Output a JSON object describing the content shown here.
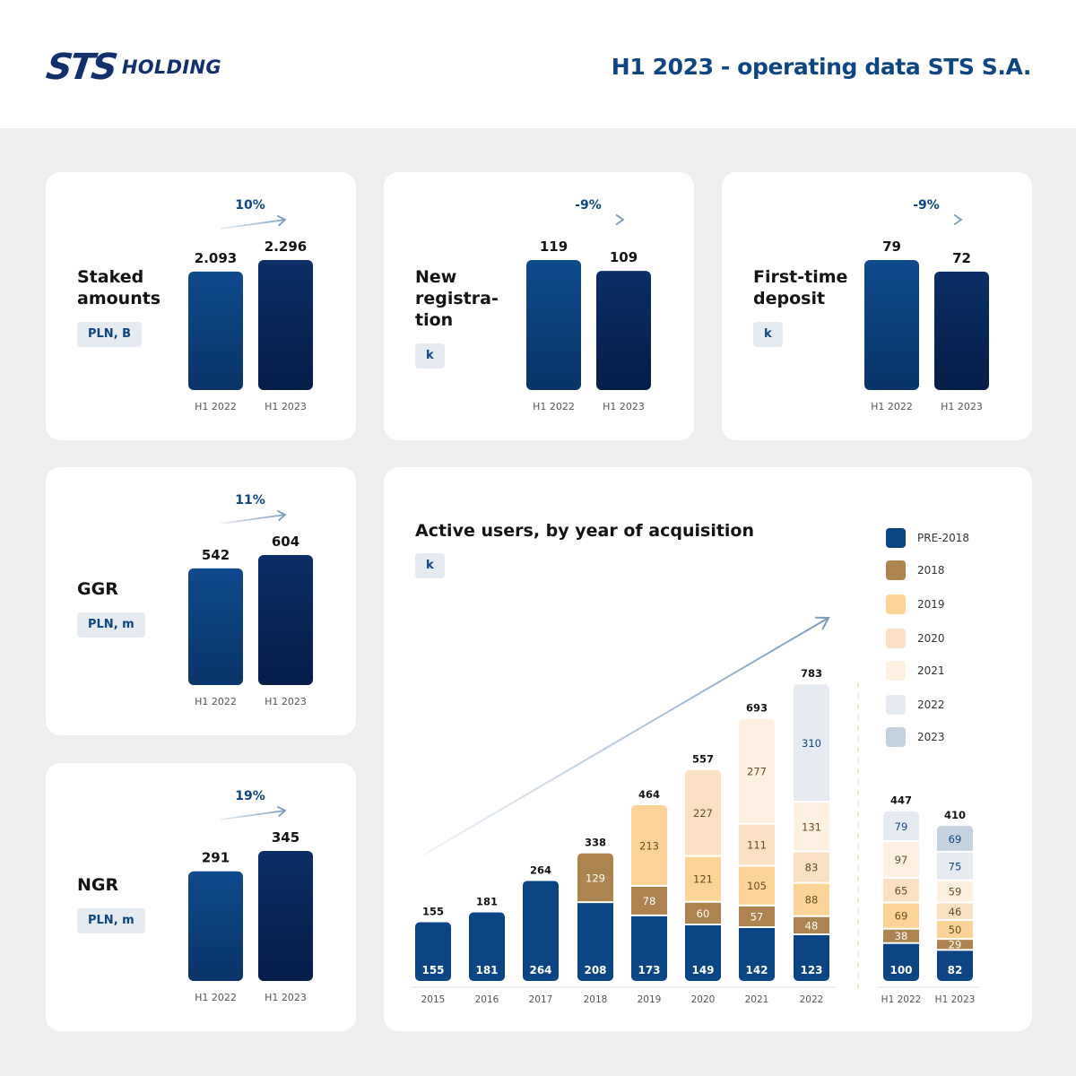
{
  "header": {
    "logo_mark": "STS",
    "logo_text": "HOLDING",
    "title": "H1 2023 - operating data STS S.A."
  },
  "colors": {
    "bar_2022": "#0d4585",
    "bar_2023": "#08285a",
    "arrow": "#7a9cbf",
    "change_text": "#0e4682",
    "pre2018": "#0b4584",
    "y2018": "#ad8350",
    "y2019": "#fcd497",
    "y2020": "#fbe1c4",
    "y2021": "#fef1e2",
    "y2022": "#e6ebf2",
    "y2023": "#c4d2e0"
  },
  "kpis": [
    {
      "label_lines": [
        "Staked",
        "amounts"
      ],
      "unit": "PLN, B",
      "change": "10%",
      "categories": [
        "H1 2022",
        "H1 2023"
      ],
      "values": [
        2.093,
        2.296
      ],
      "value_labels": [
        "2.093",
        "2.296"
      ]
    },
    {
      "label_lines": [
        "New",
        "registra-",
        "tion"
      ],
      "unit": "k",
      "change": "-9%",
      "categories": [
        "H1 2022",
        "H1 2023"
      ],
      "values": [
        119,
        109
      ],
      "value_labels": [
        "119",
        "109"
      ]
    },
    {
      "label_lines": [
        "First-time",
        "deposit"
      ],
      "unit": "k",
      "change": "-9%",
      "categories": [
        "H1 2022",
        "H1 2023"
      ],
      "values": [
        79,
        72
      ],
      "value_labels": [
        "79",
        "72"
      ]
    },
    {
      "label_lines": [
        "GGR"
      ],
      "unit": "PLN, m",
      "change": "11%",
      "categories": [
        "H1 2022",
        "H1 2023"
      ],
      "values": [
        542,
        604
      ],
      "value_labels": [
        "542",
        "604"
      ]
    },
    {
      "label_lines": [
        "NGR"
      ],
      "unit": "PLN, m",
      "change": "19%",
      "categories": [
        "H1 2022",
        "H1 2023"
      ],
      "values": [
        291,
        345
      ],
      "value_labels": [
        "291",
        "345"
      ]
    }
  ],
  "chart_data": {
    "type": "bar",
    "stacked": true,
    "title": "Active users, by year of acquisition",
    "unit": "k",
    "legend_position": "right",
    "categories": [
      "2015",
      "2016",
      "2017",
      "2018",
      "2019",
      "2020",
      "2021",
      "2022",
      "H1 2022",
      "H1 2023"
    ],
    "totals": [
      155,
      181,
      264,
      338,
      464,
      557,
      693,
      783,
      447,
      410
    ],
    "series": [
      {
        "name": "PRE-2018",
        "color_key": "pre2018",
        "values": [
          155,
          181,
          264,
          208,
          173,
          149,
          142,
          123,
          100,
          82
        ]
      },
      {
        "name": "2018",
        "color_key": "y2018",
        "values": [
          null,
          null,
          null,
          129,
          78,
          60,
          57,
          48,
          38,
          29
        ]
      },
      {
        "name": "2019",
        "color_key": "y2019",
        "values": [
          null,
          null,
          null,
          null,
          213,
          121,
          105,
          88,
          69,
          50
        ]
      },
      {
        "name": "2020",
        "color_key": "y2020",
        "values": [
          null,
          null,
          null,
          null,
          null,
          227,
          111,
          83,
          65,
          46
        ]
      },
      {
        "name": "2021",
        "color_key": "y2021",
        "values": [
          null,
          null,
          null,
          null,
          null,
          null,
          277,
          131,
          97,
          59
        ]
      },
      {
        "name": "2022",
        "color_key": "y2022",
        "values": [
          null,
          null,
          null,
          null,
          null,
          null,
          null,
          310,
          79,
          75
        ]
      },
      {
        "name": "2023",
        "color_key": "y2023",
        "values": [
          null,
          null,
          null,
          null,
          null,
          null,
          null,
          null,
          null,
          69
        ]
      }
    ],
    "trend_arrow": true,
    "separator_before": "H1 2022"
  }
}
